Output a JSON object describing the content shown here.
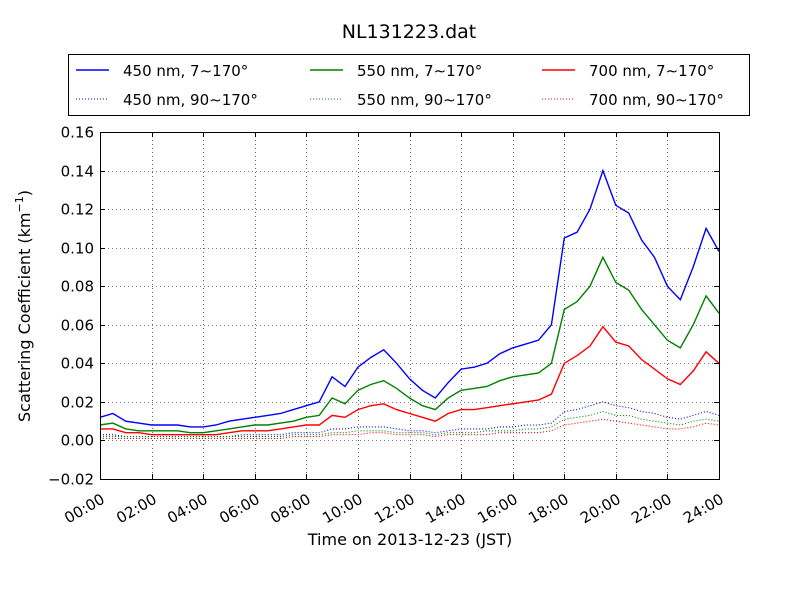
{
  "chart_data": {
    "type": "line",
    "title": "NL131223.dat",
    "xlabel": "Time on 2013-12-23 (JST)",
    "ylabel": "Scattering Coefficient (km",
    "ylabel_sup": "−1",
    "ylabel_end": ")",
    "xlim": [
      0,
      24
    ],
    "ylim": [
      -0.02,
      0.16
    ],
    "x_ticks": [
      0,
      2,
      4,
      6,
      8,
      10,
      12,
      14,
      16,
      18,
      20,
      22,
      24
    ],
    "x_tick_labels": [
      "00:00",
      "02:00",
      "04:00",
      "06:00",
      "08:00",
      "10:00",
      "12:00",
      "14:00",
      "16:00",
      "18:00",
      "20:00",
      "22:00",
      "24:00"
    ],
    "y_ticks": [
      -0.02,
      0.0,
      0.02,
      0.04,
      0.06,
      0.08,
      0.1,
      0.12,
      0.14,
      0.16
    ],
    "y_tick_labels": [
      "−0.02",
      "0.00",
      "0.02",
      "0.04",
      "0.06",
      "0.08",
      "0.10",
      "0.12",
      "0.14",
      "0.16"
    ],
    "grid": true,
    "legend_position": "top",
    "x": [
      0,
      0.5,
      1,
      1.5,
      2,
      2.5,
      3,
      3.5,
      4,
      4.5,
      5,
      5.5,
      6,
      6.5,
      7,
      7.5,
      8,
      8.5,
      9,
      9.5,
      10,
      10.5,
      11,
      11.5,
      12,
      12.5,
      13,
      13.5,
      14,
      14.5,
      15,
      15.5,
      16,
      16.5,
      17,
      17.5,
      18,
      18.5,
      19,
      19.5,
      20,
      20.5,
      21,
      21.5,
      22,
      22.5,
      23,
      23.5,
      24
    ],
    "series": [
      {
        "name": "450 nm, 7∼170°",
        "color": "#0000ff",
        "style": "solid",
        "values": [
          0.012,
          0.014,
          0.01,
          0.009,
          0.008,
          0.008,
          0.008,
          0.007,
          0.007,
          0.008,
          0.01,
          0.011,
          0.012,
          0.013,
          0.014,
          0.016,
          0.018,
          0.02,
          0.033,
          0.028,
          0.038,
          0.043,
          0.047,
          0.04,
          0.032,
          0.026,
          0.022,
          0.03,
          0.037,
          0.038,
          0.04,
          0.045,
          0.048,
          0.05,
          0.052,
          0.06,
          0.105,
          0.108,
          0.12,
          0.14,
          0.122,
          0.118,
          0.104,
          0.095,
          0.08,
          0.073,
          0.09,
          0.11,
          0.098
        ]
      },
      {
        "name": "450 nm, 90∼170°",
        "color": "#0000ff",
        "style": "dotted",
        "values": [
          0.003,
          0.003,
          0.002,
          0.002,
          0.002,
          0.002,
          0.002,
          0.002,
          0.002,
          0.002,
          0.002,
          0.003,
          0.003,
          0.003,
          0.003,
          0.004,
          0.004,
          0.004,
          0.006,
          0.006,
          0.007,
          0.007,
          0.007,
          0.006,
          0.005,
          0.005,
          0.004,
          0.005,
          0.006,
          0.006,
          0.006,
          0.007,
          0.007,
          0.008,
          0.008,
          0.009,
          0.015,
          0.016,
          0.018,
          0.02,
          0.018,
          0.017,
          0.015,
          0.014,
          0.012,
          0.011,
          0.013,
          0.015,
          0.013
        ]
      },
      {
        "name": "550 nm, 7∼170°",
        "color": "#008000",
        "style": "solid",
        "values": [
          0.008,
          0.009,
          0.006,
          0.005,
          0.005,
          0.005,
          0.005,
          0.004,
          0.004,
          0.005,
          0.006,
          0.007,
          0.008,
          0.008,
          0.009,
          0.01,
          0.012,
          0.013,
          0.022,
          0.019,
          0.026,
          0.029,
          0.031,
          0.027,
          0.022,
          0.018,
          0.016,
          0.022,
          0.026,
          0.027,
          0.028,
          0.031,
          0.033,
          0.034,
          0.035,
          0.04,
          0.068,
          0.072,
          0.08,
          0.095,
          0.082,
          0.078,
          0.068,
          0.06,
          0.052,
          0.048,
          0.06,
          0.075,
          0.066
        ]
      },
      {
        "name": "550 nm, 90∼170°",
        "color": "#008000",
        "style": "dotted",
        "values": [
          0.002,
          0.002,
          0.002,
          0.002,
          0.002,
          0.002,
          0.002,
          0.002,
          0.002,
          0.002,
          0.002,
          0.002,
          0.002,
          0.002,
          0.002,
          0.003,
          0.003,
          0.003,
          0.004,
          0.004,
          0.005,
          0.005,
          0.005,
          0.004,
          0.004,
          0.004,
          0.003,
          0.004,
          0.004,
          0.004,
          0.005,
          0.005,
          0.005,
          0.006,
          0.006,
          0.007,
          0.011,
          0.012,
          0.013,
          0.015,
          0.013,
          0.013,
          0.011,
          0.01,
          0.009,
          0.008,
          0.01,
          0.011,
          0.01
        ]
      },
      {
        "name": "700 nm, 7∼170°",
        "color": "#ff0000",
        "style": "solid",
        "values": [
          0.006,
          0.006,
          0.004,
          0.004,
          0.003,
          0.003,
          0.003,
          0.003,
          0.003,
          0.003,
          0.004,
          0.005,
          0.005,
          0.005,
          0.006,
          0.007,
          0.008,
          0.008,
          0.013,
          0.012,
          0.016,
          0.018,
          0.019,
          0.016,
          0.014,
          0.012,
          0.01,
          0.014,
          0.016,
          0.016,
          0.017,
          0.018,
          0.019,
          0.02,
          0.021,
          0.024,
          0.04,
          0.044,
          0.049,
          0.059,
          0.051,
          0.049,
          0.042,
          0.037,
          0.032,
          0.029,
          0.036,
          0.046,
          0.04
        ]
      },
      {
        "name": "700 nm, 90∼170°",
        "color": "#ff0000",
        "style": "dotted",
        "values": [
          0.001,
          0.001,
          0.001,
          0.001,
          0.001,
          0.001,
          0.001,
          0.001,
          0.001,
          0.001,
          0.001,
          0.001,
          0.001,
          0.001,
          0.001,
          0.002,
          0.002,
          0.002,
          0.003,
          0.003,
          0.003,
          0.004,
          0.004,
          0.003,
          0.003,
          0.003,
          0.002,
          0.003,
          0.003,
          0.003,
          0.003,
          0.004,
          0.004,
          0.004,
          0.004,
          0.005,
          0.008,
          0.009,
          0.01,
          0.011,
          0.01,
          0.009,
          0.008,
          0.007,
          0.006,
          0.006,
          0.007,
          0.009,
          0.008
        ]
      }
    ]
  }
}
